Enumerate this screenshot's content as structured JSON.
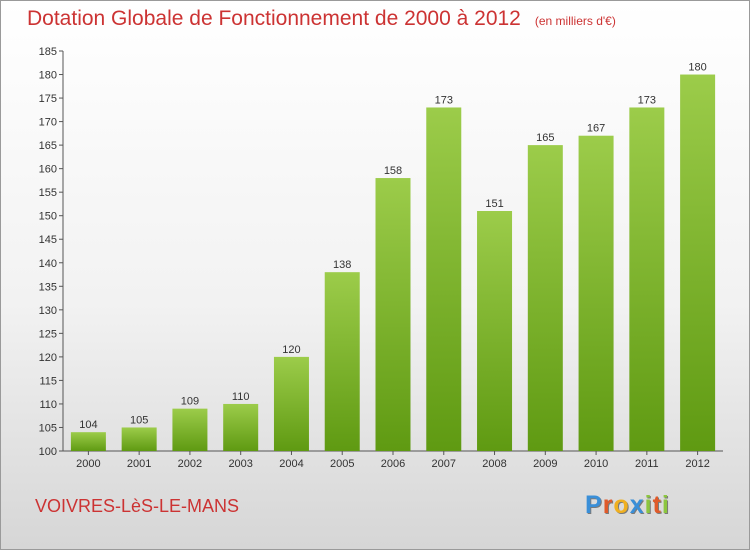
{
  "header": {
    "title": "Dotation Globale de Fonctionnement de 2000 à 2012",
    "subtitle": "(en milliers d'€)"
  },
  "footer": {
    "municipality": "VOIVRES-LèS-LE-MANS",
    "logo_letters": [
      {
        "char": "P",
        "color": "#3a8fd8"
      },
      {
        "char": "r",
        "color": "#e05a2a"
      },
      {
        "char": "o",
        "color": "#f0b020"
      },
      {
        "char": "x",
        "color": "#3a8fd8"
      },
      {
        "char": "i",
        "color": "#8cc63f"
      },
      {
        "char": "t",
        "color": "#e05a2a"
      },
      {
        "char": "i",
        "color": "#8cc63f"
      }
    ]
  },
  "chart_data": {
    "type": "bar",
    "title": "Dotation Globale de Fonctionnement de 2000 à 2012",
    "subtitle": "(en milliers d'€)",
    "categories": [
      "2000",
      "2001",
      "2002",
      "2003",
      "2004",
      "2005",
      "2006",
      "2007",
      "2008",
      "2009",
      "2010",
      "2011",
      "2012"
    ],
    "values": [
      104,
      105,
      109,
      110,
      120,
      138,
      158,
      173,
      151,
      165,
      167,
      173,
      180
    ],
    "ylim": [
      100,
      185
    ],
    "yticks": [
      100,
      105,
      110,
      115,
      120,
      125,
      130,
      135,
      140,
      145,
      150,
      155,
      160,
      165,
      170,
      175,
      180,
      185
    ],
    "grid": false,
    "bar_color_top": "#9ccc4a",
    "bar_color_bottom": "#5f9a12"
  }
}
